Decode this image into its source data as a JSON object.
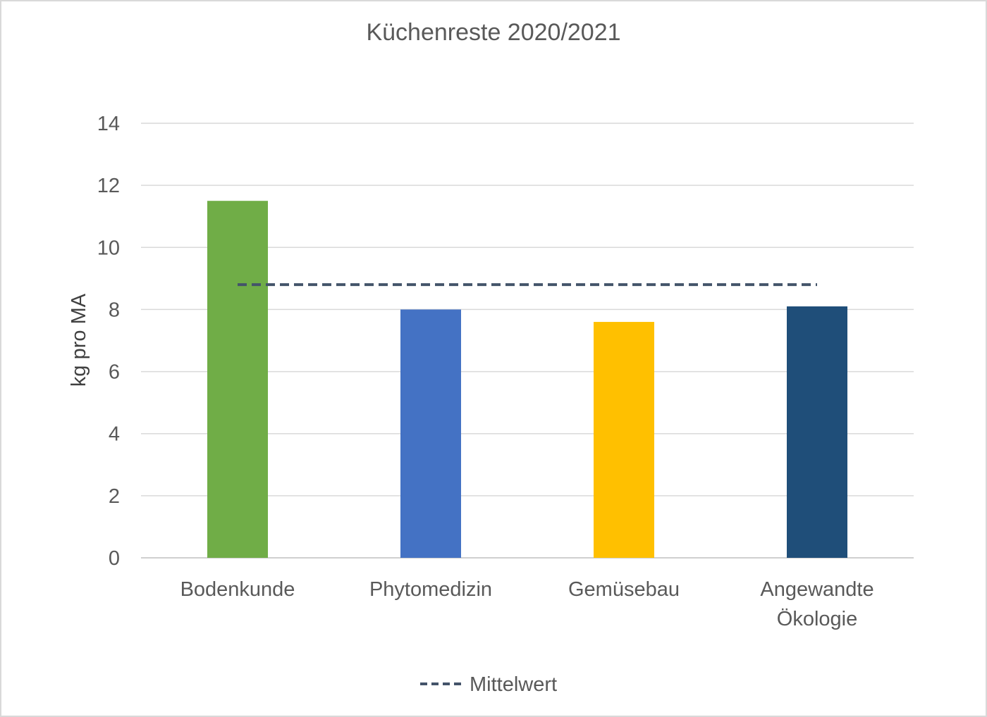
{
  "chart_data": {
    "type": "bar",
    "title": "Küchenreste 2020/2021",
    "ylabel": "kg pro MA",
    "xlabel": "",
    "categories": [
      [
        "Bodenkunde"
      ],
      [
        "Phytomedizin"
      ],
      [
        "Gemüsebau"
      ],
      [
        "Angewandte",
        "Ökologie"
      ]
    ],
    "values": [
      11.5,
      8.0,
      7.6,
      8.1
    ],
    "bar_colors": [
      "#70AD47",
      "#4472C4",
      "#FFC000",
      "#1F4E79"
    ],
    "reference_line": {
      "name": "Mittelwert",
      "value": 8.8,
      "color": "#44546A",
      "style": "dashed"
    },
    "ylim": [
      0,
      14
    ],
    "yticks": [
      0,
      2,
      4,
      6,
      8,
      10,
      12,
      14
    ],
    "grid": true,
    "legend": {
      "position": "bottom",
      "entries": [
        "Mittelwert"
      ]
    }
  }
}
